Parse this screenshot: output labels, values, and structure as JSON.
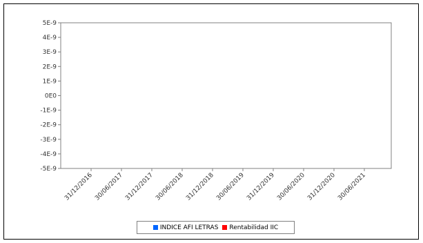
{
  "chart_data": {
    "type": "line",
    "title": "",
    "xlabel": "",
    "ylabel": "",
    "x_categories": [
      "31/12/2016",
      "30/06/2017",
      "31/12/2017",
      "30/06/2018",
      "31/12/2018",
      "30/06/2019",
      "31/12/2019",
      "30/06/2020",
      "31/12/2020",
      "30/06/2021"
    ],
    "y_ticks": [
      "5E-9",
      "4E-9",
      "3E-9",
      "2E-9",
      "1E-9",
      "0E0",
      "-1E-9",
      "-2E-9",
      "-3E-9",
      "-4E-9",
      "-5E-9"
    ],
    "ylim": [
      -5e-09,
      5e-09
    ],
    "grid": false,
    "legend_position": "bottom",
    "series": [
      {
        "name": "INDICE AFI LETRAS",
        "color": "#0066ff",
        "values": []
      },
      {
        "name": "Rentabilidad IIC",
        "color": "#ff0000",
        "values": []
      }
    ]
  }
}
